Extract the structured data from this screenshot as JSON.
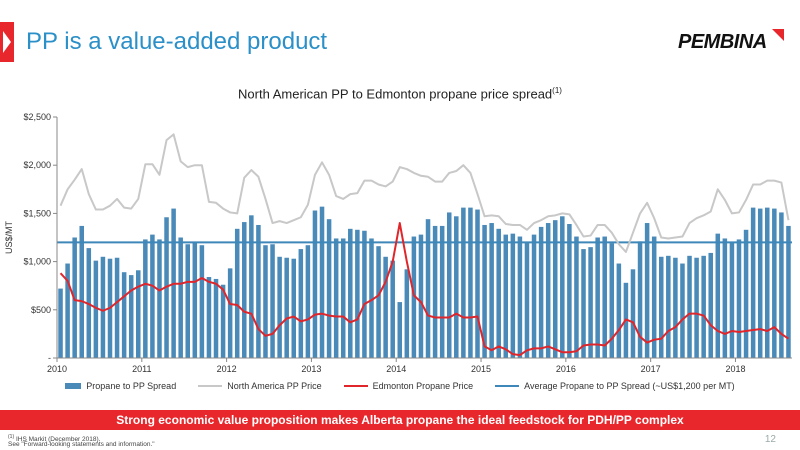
{
  "slide": {
    "title": "PP is a value-added product",
    "logo_text": "PEMBINA",
    "banner": "Strong economic value proposition makes Alberta propane the ideal feedstock for PDH/PP complex",
    "footnote_1": "IHS Markit (December 2018).",
    "footnote_1_marker": "(1)",
    "footnote_2": "See \"Forward-looking statements and information.\"",
    "page_number": "12"
  },
  "colors": {
    "accent_red": "#e8272c",
    "title_blue": "#2b8fc8",
    "bar": "#4a8ab8",
    "na_pp": "#c8c8c8",
    "edmonton": "#e0262b",
    "average": "#3d88b8"
  },
  "chart_data": {
    "type": "bar",
    "title": "North American PP to Edmonton propane price spread",
    "title_superscript": "(1)",
    "ylabel": "US$/MT",
    "xlabel": "",
    "ylim": [
      0,
      2500
    ],
    "yticks": [
      0,
      500,
      1000,
      1500,
      2000,
      2500
    ],
    "ytick_labels": [
      "-",
      "$500",
      "$1,000",
      "$1,500",
      "$2,000",
      "$2,500"
    ],
    "x_start_year": 2010,
    "xtick_labels": [
      "2010",
      "2011",
      "2012",
      "2013",
      "2014",
      "2015",
      "2016",
      "2017",
      "2018"
    ],
    "grid": false,
    "legend_position": "bottom",
    "legend": [
      "Propane to PP Spread",
      "North America PP Price",
      "Edmonton Propane Price",
      "Average Propane to PP Spread (~US$1,200 per MT)"
    ],
    "series": [
      {
        "name": "Propane to PP Spread",
        "kind": "bar",
        "values": [
          720,
          980,
          1250,
          1370,
          1140,
          1010,
          1050,
          1030,
          1040,
          890,
          860,
          910,
          1230,
          1280,
          1230,
          1460,
          1550,
          1250,
          1180,
          1200,
          1170,
          840,
          820,
          760,
          930,
          1340,
          1410,
          1480,
          1380,
          1170,
          1180,
          1050,
          1040,
          1030,
          1130,
          1170,
          1530,
          1570,
          1440,
          1240,
          1240,
          1340,
          1330,
          1320,
          1240,
          1160,
          1050,
          1010,
          580,
          920,
          1260,
          1280,
          1440,
          1370,
          1370,
          1510,
          1470,
          1560,
          1560,
          1540,
          1380,
          1400,
          1340,
          1280,
          1290,
          1260,
          1200,
          1280,
          1360,
          1400,
          1430,
          1470,
          1390,
          1260,
          1130,
          1150,
          1250,
          1260,
          1190,
          980,
          780,
          920,
          1210,
          1400,
          1260,
          1050,
          1060,
          1040,
          980,
          1060,
          1040,
          1060,
          1090,
          1290,
          1240,
          1200,
          1230,
          1330,
          1560,
          1550,
          1560,
          1550,
          1510,
          1370
        ]
      },
      {
        "name": "North America PP Price",
        "kind": "line",
        "values": [
          1580,
          1750,
          1850,
          1960,
          1700,
          1540,
          1540,
          1580,
          1650,
          1560,
          1550,
          1650,
          2010,
          2010,
          1900,
          2260,
          2320,
          2040,
          1980,
          2000,
          2000,
          1620,
          1610,
          1550,
          1510,
          1500,
          1870,
          1950,
          1880,
          1650,
          1400,
          1420,
          1400,
          1430,
          1460,
          1590,
          1900,
          2030,
          1900,
          1680,
          1650,
          1700,
          1710,
          1840,
          1840,
          1800,
          1780,
          1830,
          1980,
          1960,
          1920,
          1890,
          1880,
          1830,
          1830,
          1920,
          1940,
          2000,
          1920,
          1700,
          1470,
          1480,
          1470,
          1390,
          1380,
          1380,
          1330,
          1400,
          1430,
          1470,
          1480,
          1500,
          1490,
          1380,
          1260,
          1270,
          1380,
          1380,
          1300,
          1180,
          1100,
          1300,
          1500,
          1610,
          1450,
          1250,
          1240,
          1250,
          1260,
          1400,
          1450,
          1480,
          1520,
          1750,
          1640,
          1500,
          1510,
          1640,
          1800,
          1800,
          1840,
          1840,
          1820,
          1430
        ]
      },
      {
        "name": "Edmonton Propane Price",
        "kind": "line",
        "values": [
          880,
          800,
          600,
          590,
          560,
          520,
          490,
          520,
          580,
          640,
          700,
          740,
          770,
          750,
          700,
          740,
          770,
          770,
          790,
          790,
          830,
          790,
          770,
          710,
          560,
          550,
          480,
          460,
          300,
          230,
          250,
          340,
          410,
          430,
          380,
          400,
          450,
          460,
          440,
          430,
          430,
          370,
          400,
          560,
          600,
          650,
          790,
          1000,
          1400,
          1000,
          650,
          580,
          440,
          420,
          420,
          420,
          460,
          420,
          420,
          430,
          120,
          80,
          120,
          90,
          40,
          30,
          80,
          100,
          100,
          120,
          90,
          60,
          60,
          70,
          130,
          140,
          140,
          130,
          200,
          290,
          400,
          370,
          220,
          160,
          190,
          200,
          280,
          320,
          400,
          460,
          460,
          440,
          340,
          280,
          250,
          280,
          270,
          280,
          290,
          300,
          280,
          320,
          250,
          200
        ]
      },
      {
        "name": "Average Propane to PP Spread (~US$1,200 per MT)",
        "kind": "hline",
        "values": [
          1200
        ]
      }
    ]
  }
}
